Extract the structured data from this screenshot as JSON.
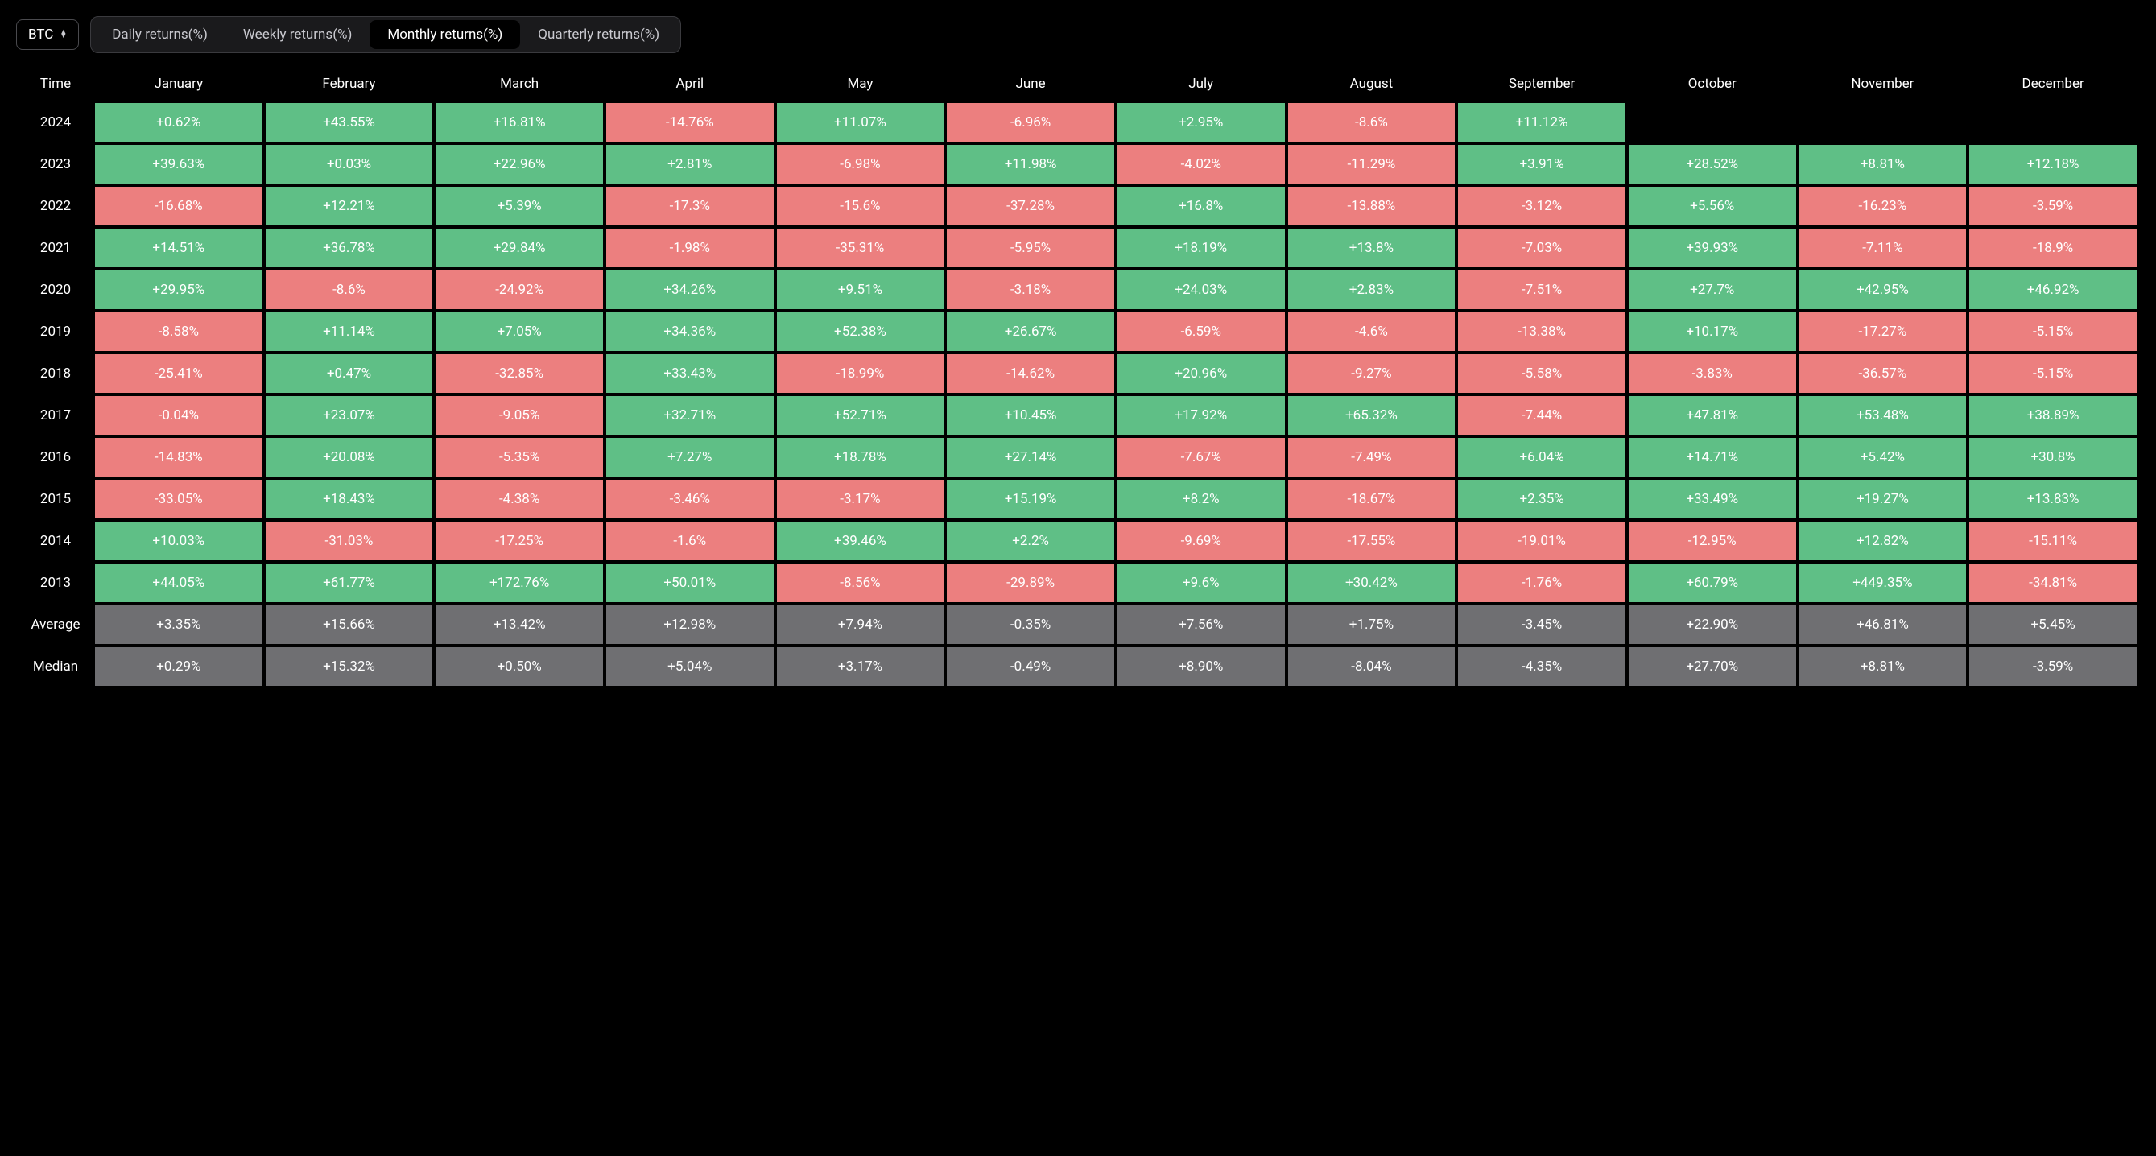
{
  "colors": {
    "background": "#000000",
    "positive": "#5fbf86",
    "negative": "#ec7f7f",
    "neutral": "#6f6f72",
    "text": "#ffffff",
    "tab_bg": "#1a1a1c",
    "tab_border": "#3a3a3e",
    "selector_border": "#4a4a4e"
  },
  "selector": {
    "value": "BTC"
  },
  "tabs": [
    {
      "label": "Daily returns(%)",
      "active": false
    },
    {
      "label": "Weekly returns(%)",
      "active": false
    },
    {
      "label": "Monthly returns(%)",
      "active": true
    },
    {
      "label": "Quarterly returns(%)",
      "active": false
    }
  ],
  "table": {
    "time_header": "Time",
    "columns": [
      "January",
      "February",
      "March",
      "April",
      "May",
      "June",
      "July",
      "August",
      "September",
      "October",
      "November",
      "December"
    ],
    "years": [
      {
        "label": "2024",
        "cells": [
          {
            "v": "+0.62%",
            "s": 1
          },
          {
            "v": "+43.55%",
            "s": 1
          },
          {
            "v": "+16.81%",
            "s": 1
          },
          {
            "v": "-14.76%",
            "s": -1
          },
          {
            "v": "+11.07%",
            "s": 1
          },
          {
            "v": "-6.96%",
            "s": -1
          },
          {
            "v": "+2.95%",
            "s": 1
          },
          {
            "v": "-8.6%",
            "s": -1
          },
          {
            "v": "+11.12%",
            "s": 1
          },
          null,
          null,
          null
        ]
      },
      {
        "label": "2023",
        "cells": [
          {
            "v": "+39.63%",
            "s": 1
          },
          {
            "v": "+0.03%",
            "s": 1
          },
          {
            "v": "+22.96%",
            "s": 1
          },
          {
            "v": "+2.81%",
            "s": 1
          },
          {
            "v": "-6.98%",
            "s": -1
          },
          {
            "v": "+11.98%",
            "s": 1
          },
          {
            "v": "-4.02%",
            "s": -1
          },
          {
            "v": "-11.29%",
            "s": -1
          },
          {
            "v": "+3.91%",
            "s": 1
          },
          {
            "v": "+28.52%",
            "s": 1
          },
          {
            "v": "+8.81%",
            "s": 1
          },
          {
            "v": "+12.18%",
            "s": 1
          }
        ]
      },
      {
        "label": "2022",
        "cells": [
          {
            "v": "-16.68%",
            "s": -1
          },
          {
            "v": "+12.21%",
            "s": 1
          },
          {
            "v": "+5.39%",
            "s": 1
          },
          {
            "v": "-17.3%",
            "s": -1
          },
          {
            "v": "-15.6%",
            "s": -1
          },
          {
            "v": "-37.28%",
            "s": -1
          },
          {
            "v": "+16.8%",
            "s": 1
          },
          {
            "v": "-13.88%",
            "s": -1
          },
          {
            "v": "-3.12%",
            "s": -1
          },
          {
            "v": "+5.56%",
            "s": 1
          },
          {
            "v": "-16.23%",
            "s": -1
          },
          {
            "v": "-3.59%",
            "s": -1
          }
        ]
      },
      {
        "label": "2021",
        "cells": [
          {
            "v": "+14.51%",
            "s": 1
          },
          {
            "v": "+36.78%",
            "s": 1
          },
          {
            "v": "+29.84%",
            "s": 1
          },
          {
            "v": "-1.98%",
            "s": -1
          },
          {
            "v": "-35.31%",
            "s": -1
          },
          {
            "v": "-5.95%",
            "s": -1
          },
          {
            "v": "+18.19%",
            "s": 1
          },
          {
            "v": "+13.8%",
            "s": 1
          },
          {
            "v": "-7.03%",
            "s": -1
          },
          {
            "v": "+39.93%",
            "s": 1
          },
          {
            "v": "-7.11%",
            "s": -1
          },
          {
            "v": "-18.9%",
            "s": -1
          }
        ]
      },
      {
        "label": "2020",
        "cells": [
          {
            "v": "+29.95%",
            "s": 1
          },
          {
            "v": "-8.6%",
            "s": -1
          },
          {
            "v": "-24.92%",
            "s": -1
          },
          {
            "v": "+34.26%",
            "s": 1
          },
          {
            "v": "+9.51%",
            "s": 1
          },
          {
            "v": "-3.18%",
            "s": -1
          },
          {
            "v": "+24.03%",
            "s": 1
          },
          {
            "v": "+2.83%",
            "s": 1
          },
          {
            "v": "-7.51%",
            "s": -1
          },
          {
            "v": "+27.7%",
            "s": 1
          },
          {
            "v": "+42.95%",
            "s": 1
          },
          {
            "v": "+46.92%",
            "s": 1
          }
        ]
      },
      {
        "label": "2019",
        "cells": [
          {
            "v": "-8.58%",
            "s": -1
          },
          {
            "v": "+11.14%",
            "s": 1
          },
          {
            "v": "+7.05%",
            "s": 1
          },
          {
            "v": "+34.36%",
            "s": 1
          },
          {
            "v": "+52.38%",
            "s": 1
          },
          {
            "v": "+26.67%",
            "s": 1
          },
          {
            "v": "-6.59%",
            "s": -1
          },
          {
            "v": "-4.6%",
            "s": -1
          },
          {
            "v": "-13.38%",
            "s": -1
          },
          {
            "v": "+10.17%",
            "s": 1
          },
          {
            "v": "-17.27%",
            "s": -1
          },
          {
            "v": "-5.15%",
            "s": -1
          }
        ]
      },
      {
        "label": "2018",
        "cells": [
          {
            "v": "-25.41%",
            "s": -1
          },
          {
            "v": "+0.47%",
            "s": 1
          },
          {
            "v": "-32.85%",
            "s": -1
          },
          {
            "v": "+33.43%",
            "s": 1
          },
          {
            "v": "-18.99%",
            "s": -1
          },
          {
            "v": "-14.62%",
            "s": -1
          },
          {
            "v": "+20.96%",
            "s": 1
          },
          {
            "v": "-9.27%",
            "s": -1
          },
          {
            "v": "-5.58%",
            "s": -1
          },
          {
            "v": "-3.83%",
            "s": -1
          },
          {
            "v": "-36.57%",
            "s": -1
          },
          {
            "v": "-5.15%",
            "s": -1
          }
        ]
      },
      {
        "label": "2017",
        "cells": [
          {
            "v": "-0.04%",
            "s": -1
          },
          {
            "v": "+23.07%",
            "s": 1
          },
          {
            "v": "-9.05%",
            "s": -1
          },
          {
            "v": "+32.71%",
            "s": 1
          },
          {
            "v": "+52.71%",
            "s": 1
          },
          {
            "v": "+10.45%",
            "s": 1
          },
          {
            "v": "+17.92%",
            "s": 1
          },
          {
            "v": "+65.32%",
            "s": 1
          },
          {
            "v": "-7.44%",
            "s": -1
          },
          {
            "v": "+47.81%",
            "s": 1
          },
          {
            "v": "+53.48%",
            "s": 1
          },
          {
            "v": "+38.89%",
            "s": 1
          }
        ]
      },
      {
        "label": "2016",
        "cells": [
          {
            "v": "-14.83%",
            "s": -1
          },
          {
            "v": "+20.08%",
            "s": 1
          },
          {
            "v": "-5.35%",
            "s": -1
          },
          {
            "v": "+7.27%",
            "s": 1
          },
          {
            "v": "+18.78%",
            "s": 1
          },
          {
            "v": "+27.14%",
            "s": 1
          },
          {
            "v": "-7.67%",
            "s": -1
          },
          {
            "v": "-7.49%",
            "s": -1
          },
          {
            "v": "+6.04%",
            "s": 1
          },
          {
            "v": "+14.71%",
            "s": 1
          },
          {
            "v": "+5.42%",
            "s": 1
          },
          {
            "v": "+30.8%",
            "s": 1
          }
        ]
      },
      {
        "label": "2015",
        "cells": [
          {
            "v": "-33.05%",
            "s": -1
          },
          {
            "v": "+18.43%",
            "s": 1
          },
          {
            "v": "-4.38%",
            "s": -1
          },
          {
            "v": "-3.46%",
            "s": -1
          },
          {
            "v": "-3.17%",
            "s": -1
          },
          {
            "v": "+15.19%",
            "s": 1
          },
          {
            "v": "+8.2%",
            "s": 1
          },
          {
            "v": "-18.67%",
            "s": -1
          },
          {
            "v": "+2.35%",
            "s": 1
          },
          {
            "v": "+33.49%",
            "s": 1
          },
          {
            "v": "+19.27%",
            "s": 1
          },
          {
            "v": "+13.83%",
            "s": 1
          }
        ]
      },
      {
        "label": "2014",
        "cells": [
          {
            "v": "+10.03%",
            "s": 1
          },
          {
            "v": "-31.03%",
            "s": -1
          },
          {
            "v": "-17.25%",
            "s": -1
          },
          {
            "v": "-1.6%",
            "s": -1
          },
          {
            "v": "+39.46%",
            "s": 1
          },
          {
            "v": "+2.2%",
            "s": 1
          },
          {
            "v": "-9.69%",
            "s": -1
          },
          {
            "v": "-17.55%",
            "s": -1
          },
          {
            "v": "-19.01%",
            "s": -1
          },
          {
            "v": "-12.95%",
            "s": -1
          },
          {
            "v": "+12.82%",
            "s": 1
          },
          {
            "v": "-15.11%",
            "s": -1
          }
        ]
      },
      {
        "label": "2013",
        "cells": [
          {
            "v": "+44.05%",
            "s": 1
          },
          {
            "v": "+61.77%",
            "s": 1
          },
          {
            "v": "+172.76%",
            "s": 1
          },
          {
            "v": "+50.01%",
            "s": 1
          },
          {
            "v": "-8.56%",
            "s": -1
          },
          {
            "v": "-29.89%",
            "s": -1
          },
          {
            "v": "+9.6%",
            "s": 1
          },
          {
            "v": "+30.42%",
            "s": 1
          },
          {
            "v": "-1.76%",
            "s": -1
          },
          {
            "v": "+60.79%",
            "s": 1
          },
          {
            "v": "+449.35%",
            "s": 1
          },
          {
            "v": "-34.81%",
            "s": -1
          }
        ]
      }
    ],
    "summary": [
      {
        "label": "Average",
        "cells": [
          "+3.35%",
          "+15.66%",
          "+13.42%",
          "+12.98%",
          "+7.94%",
          "-0.35%",
          "+7.56%",
          "+1.75%",
          "-3.45%",
          "+22.90%",
          "+46.81%",
          "+5.45%"
        ]
      },
      {
        "label": "Median",
        "cells": [
          "+0.29%",
          "+15.32%",
          "+0.50%",
          "+5.04%",
          "+3.17%",
          "-0.49%",
          "+8.90%",
          "-8.04%",
          "-4.35%",
          "+27.70%",
          "+8.81%",
          "-3.59%"
        ]
      }
    ]
  }
}
